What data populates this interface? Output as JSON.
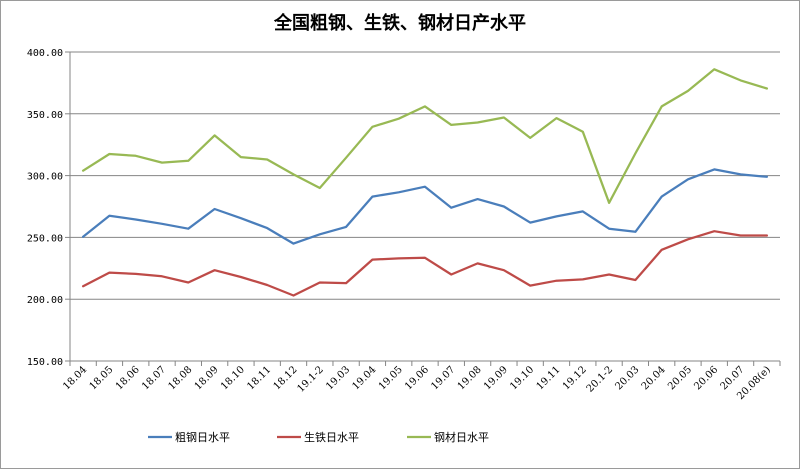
{
  "chart_data": {
    "type": "line",
    "title": "全国粗钢、生铁、钢材日产水平",
    "xlabel": "",
    "ylabel": "",
    "ylim": [
      150,
      400
    ],
    "yticks": [
      "150.00",
      "200.00",
      "250.00",
      "300.00",
      "350.00",
      "400.00"
    ],
    "grid": "horizontal",
    "legend_position": "bottom",
    "categories": [
      "18.04",
      "18.05",
      "18.06",
      "18.07",
      "18.08",
      "18.09",
      "18.10",
      "18.11",
      "18.12",
      "19.1-2",
      "19.03",
      "19.04",
      "19.05",
      "19.06",
      "19.07",
      "19.08",
      "19.09",
      "19.10",
      "19.11",
      "19.12",
      "20.1-2",
      "20.03",
      "20.04",
      "20.05",
      "20.06",
      "20.07",
      "20.08(e)"
    ],
    "series": [
      {
        "name": "粗钢日水平",
        "color": "#4a7ebb",
        "values": [
          250.5,
          267.5,
          264.5,
          261,
          257,
          273,
          265.5,
          257.5,
          245,
          252.5,
          258.5,
          283,
          286.5,
          291,
          274,
          281,
          275,
          262,
          267,
          271,
          257,
          254.5,
          283,
          297,
          305,
          301,
          299
        ]
      },
      {
        "name": "生铁日水平",
        "color": "#be4b48",
        "values": [
          210.5,
          221.5,
          220.5,
          218.5,
          213.5,
          223.5,
          218,
          211.5,
          203,
          213.5,
          213,
          232,
          233,
          233.5,
          220,
          229,
          223.5,
          211,
          215,
          216,
          220,
          215.5,
          240,
          248.5,
          255,
          251.5,
          251.5
        ]
      },
      {
        "name": "钢材日水平",
        "color": "#98b954",
        "values": [
          304,
          317.5,
          316,
          310.5,
          312,
          332.5,
          315,
          313,
          301,
          290,
          314.5,
          339.5,
          346,
          356,
          341,
          343,
          347,
          330.5,
          346.5,
          335.5,
          278,
          318,
          356,
          368.5,
          386,
          377,
          370.5
        ]
      }
    ]
  }
}
